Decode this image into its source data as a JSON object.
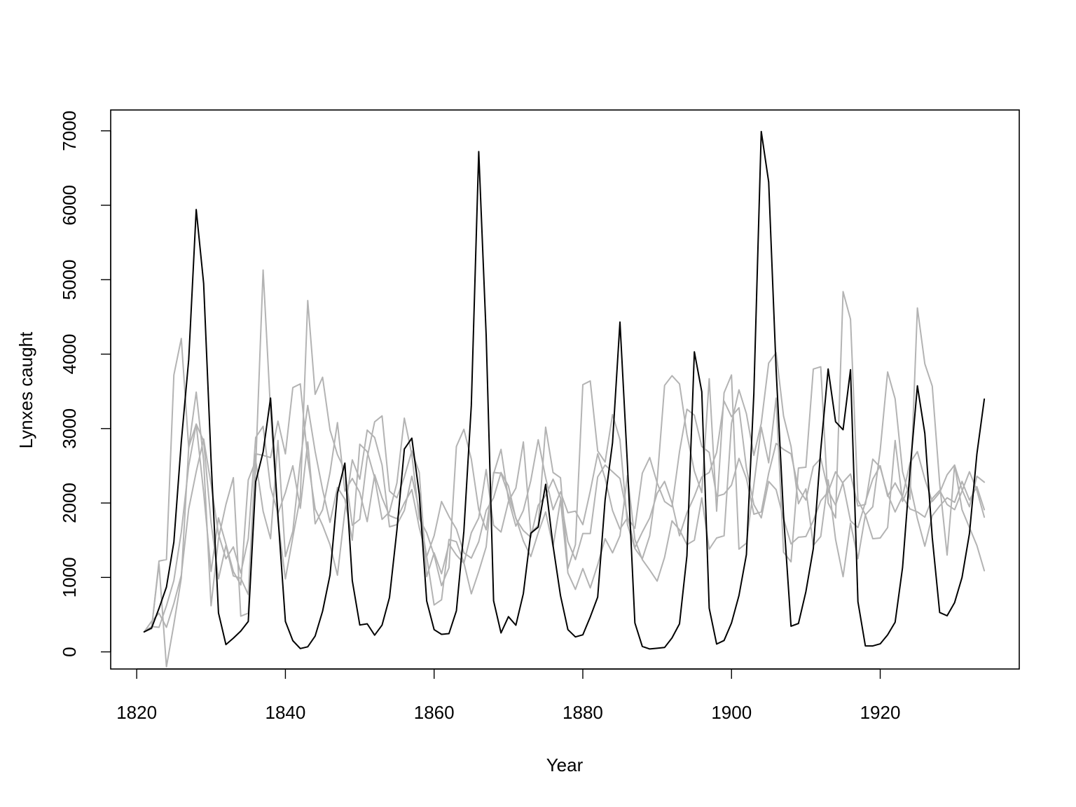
{
  "chart_data": {
    "type": "line",
    "title": "",
    "xlabel": "Year",
    "ylabel": "Lynxes caught",
    "xlim": [
      1816.5,
      1938.7
    ],
    "ylim": [
      -230,
      7280
    ],
    "x_ticks": [
      1820,
      1840,
      1860,
      1880,
      1900,
      1920
    ],
    "y_ticks": [
      0,
      1000,
      2000,
      3000,
      4000,
      5000,
      6000,
      7000
    ],
    "grid": false,
    "legend": "none",
    "colors": {
      "observed": "#000000",
      "simulated": "#b3b3b3"
    },
    "x": [
      1821,
      1822,
      1823,
      1824,
      1825,
      1826,
      1827,
      1828,
      1829,
      1830,
      1831,
      1832,
      1833,
      1834,
      1835,
      1836,
      1837,
      1838,
      1839,
      1840,
      1841,
      1842,
      1843,
      1844,
      1845,
      1846,
      1847,
      1848,
      1849,
      1850,
      1851,
      1852,
      1853,
      1854,
      1855,
      1856,
      1857,
      1858,
      1859,
      1860,
      1861,
      1862,
      1863,
      1864,
      1865,
      1866,
      1867,
      1868,
      1869,
      1870,
      1871,
      1872,
      1873,
      1874,
      1875,
      1876,
      1877,
      1878,
      1879,
      1880,
      1881,
      1882,
      1883,
      1884,
      1885,
      1886,
      1887,
      1888,
      1889,
      1890,
      1891,
      1892,
      1893,
      1894,
      1895,
      1896,
      1897,
      1898,
      1899,
      1900,
      1901,
      1902,
      1903,
      1904,
      1905,
      1906,
      1907,
      1908,
      1909,
      1910,
      1911,
      1912,
      1913,
      1914,
      1915,
      1916,
      1917,
      1918,
      1919,
      1920,
      1921,
      1922,
      1923,
      1924,
      1925,
      1926,
      1927,
      1928,
      1929,
      1930,
      1931,
      1932,
      1933,
      1934
    ],
    "series": [
      {
        "role": "observed",
        "values": [
          269,
          321,
          585,
          871,
          1475,
          2821,
          3928,
          5943,
          4950,
          2577,
          523,
          98,
          184,
          279,
          409,
          2285,
          2685,
          3409,
          1824,
          409,
          151,
          45,
          68,
          213,
          546,
          1033,
          2129,
          2536,
          957,
          361,
          377,
          225,
          360,
          731,
          1638,
          2725,
          2871,
          2119,
          684,
          299,
          236,
          245,
          552,
          1623,
          3311,
          6721,
          4254,
          687,
          255,
          473,
          358,
          784,
          1594,
          1676,
          2251,
          1426,
          756,
          299,
          201,
          229,
          469,
          736,
          2042,
          2811,
          4431,
          2511,
          389,
          73,
          39,
          49,
          59,
          188,
          377,
          1292,
          4031,
          3495,
          587,
          105,
          153,
          387,
          758,
          1307,
          3465,
          6991,
          6313,
          3794,
          1836,
          345,
          382,
          808,
          1388,
          2713,
          3800,
          3091,
          2985,
          3790,
          674,
          81,
          80,
          108,
          229,
          399,
          1132,
          2432,
          3574,
          2935,
          1537,
          529,
          485,
          662,
          1000,
          1590,
          2657,
          3396
        ]
      },
      {
        "role": "simulated",
        "values": [
          269,
          310,
          1220,
          1240,
          3720,
          4210,
          2740,
          3490,
          2570,
          620,
          1520,
          1980,
          2340,
          480,
          520,
          2490,
          5130,
          3240,
          1760,
          980,
          1540,
          2080,
          4720,
          3460,
          3690,
          2980,
          2650,
          2440,
          1700,
          1780,
          2610,
          3090,
          3170,
          2160,
          2070,
          2350,
          2700,
          2410,
          1010,
          1330,
          1050,
          1450,
          1300,
          1190,
          1600,
          1800,
          2450,
          1700,
          1610,
          2020,
          2200,
          2820,
          1600,
          1700,
          3020,
          2410,
          2340,
          1120,
          1440,
          3590,
          3640,
          2700,
          2550,
          3190,
          2850,
          1710,
          1390,
          1250,
          1560,
          2300,
          3580,
          3710,
          3600,
          2920,
          2430,
          2140,
          3670,
          1890,
          3480,
          3720,
          1380,
          1460,
          2240,
          3020,
          2540,
          3410,
          1340,
          1210,
          2470,
          2480,
          3800,
          3830,
          2000,
          1800,
          4840,
          4470,
          2040,
          1840,
          1950,
          2710,
          3760,
          3400,
          2420,
          2050,
          4620,
          3870,
          3570,
          2260,
          1300,
          2510,
          1910,
          1670,
          1430,
          1090
        ]
      },
      {
        "role": "simulated",
        "values": [
          269,
          340,
          330,
          620,
          960,
          1610,
          2500,
          3060,
          2830,
          1740,
          980,
          1430,
          1020,
          990,
          770,
          2660,
          2640,
          2610,
          3100,
          2660,
          3550,
          3600,
          2590,
          1920,
          1700,
          1440,
          1030,
          1890,
          2580,
          2320,
          2980,
          2880,
          2510,
          1680,
          1710,
          1900,
          2360,
          1900,
          1280,
          630,
          700,
          1510,
          1480,
          1200,
          780,
          1080,
          1410,
          2410,
          2400,
          2110,
          1800,
          1490,
          1280,
          1600,
          1880,
          1410,
          2040,
          1060,
          840,
          1120,
          860,
          1170,
          1520,
          1330,
          1560,
          2370,
          1510,
          1240,
          1100,
          950,
          1270,
          1760,
          1640,
          1440,
          1500,
          2070,
          1380,
          1530,
          1560,
          3070,
          3520,
          3200,
          2640,
          3070,
          3880,
          4020,
          3170,
          2760,
          1990,
          2190,
          1430,
          1550,
          2310,
          1510,
          1010,
          1730,
          1250,
          1840,
          1520,
          1530,
          1670,
          2840,
          2020,
          2250,
          1790,
          1420,
          1830,
          1960,
          2070,
          2010,
          2290,
          2040,
          2220,
          1910
        ]
      },
      {
        "role": "simulated",
        "values": [
          269,
          410,
          520,
          330,
          650,
          1030,
          1920,
          2420,
          2860,
          2250,
          1580,
          1250,
          1410,
          1060,
          1520,
          2880,
          3030,
          2210,
          1860,
          2140,
          2500,
          1930,
          2820,
          1720,
          1910,
          2410,
          3080,
          2160,
          2330,
          2140,
          1750,
          2380,
          2070,
          1830,
          1790,
          2000,
          2180,
          1670,
          1280,
          1560,
          2020,
          1820,
          1650,
          1330,
          1260,
          1480,
          1900,
          2070,
          2410,
          2230,
          1790,
          1630,
          1540,
          1970,
          2100,
          2320,
          2070,
          1480,
          1240,
          1590,
          1590,
          2350,
          2510,
          2420,
          2330,
          1830,
          1400,
          1610,
          1800,
          2130,
          2290,
          2000,
          1560,
          1870,
          2090,
          2350,
          2410,
          2680,
          3370,
          3160,
          3280,
          2470,
          1980,
          1800,
          2290,
          2180,
          1790,
          1450,
          1540,
          1550,
          1760,
          2030,
          2150,
          2420,
          2260,
          1760,
          1670,
          2010,
          2320,
          2500,
          2090,
          2270,
          2080,
          1920,
          1880,
          1810,
          2060,
          2170,
          1980,
          1910,
          2160,
          2420,
          2170,
          1810
        ]
      },
      {
        "role": "simulated",
        "values": [
          269,
          330,
          1180,
          -200,
          370,
          990,
          2750,
          3060,
          2140,
          1080,
          1800,
          1450,
          1080,
          900,
          2310,
          2570,
          1890,
          1520,
          2840,
          1280,
          1620,
          2570,
          3310,
          2690,
          2180,
          1740,
          2210,
          2050,
          1500,
          2790,
          2690,
          2340,
          1780,
          1880,
          2270,
          3140,
          2650,
          1790,
          1600,
          1300,
          890,
          1130,
          2760,
          2990,
          2590,
          1910,
          1640,
          2390,
          2720,
          2050,
          1690,
          1900,
          2300,
          2850,
          2340,
          1910,
          2150,
          1870,
          1890,
          1710,
          2160,
          2660,
          2330,
          1900,
          1650,
          1800,
          1660,
          2400,
          2610,
          2270,
          2020,
          1950,
          2690,
          3260,
          3180,
          2760,
          2680,
          2090,
          2120,
          2240,
          2600,
          2330,
          1850,
          1880,
          2400,
          2800,
          2720,
          2660,
          2190,
          2040,
          2490,
          2600,
          2170,
          1970,
          2280,
          2390,
          1960,
          1980,
          2590,
          2480,
          2120,
          1880,
          2090,
          2540,
          2690,
          2320,
          2020,
          2140,
          2380,
          2510,
          2180,
          1950,
          2360,
          2280
        ]
      }
    ]
  }
}
